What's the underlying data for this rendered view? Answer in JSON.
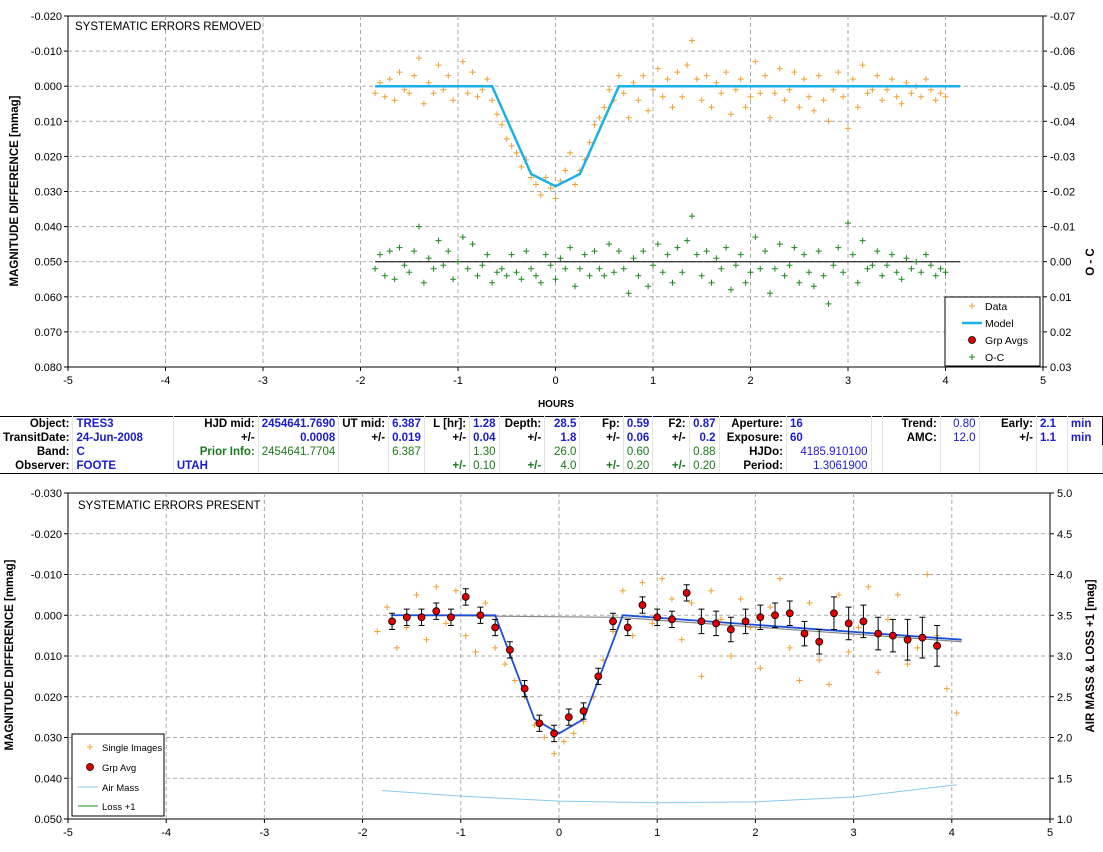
{
  "chart_data": [
    {
      "type": "scatter",
      "title": "SYSTEMATIC ERRORS REMOVED",
      "xlabel": "HOURS",
      "ylabel": "MAGNITUDE DIFFERENCE [mmag]",
      "y2label": "O - C",
      "xlim": [
        -5,
        5
      ],
      "ylim": [
        -0.02,
        0.08
      ],
      "y_inverted": true,
      "y2lim": [
        -0.07,
        0.03
      ],
      "xticks": [
        "-5",
        "-4",
        "-3",
        "-2",
        "-1",
        "0",
        "1",
        "2",
        "3",
        "4",
        "5"
      ],
      "yticks": [
        "-0.020",
        "-0.010",
        "0.000",
        "0.010",
        "0.020",
        "0.030",
        "0.040",
        "0.050",
        "0.060",
        "0.070",
        "0.080"
      ],
      "y2ticks": [
        "-0.07",
        "-0.06",
        "-0.05",
        "-0.04",
        "-0.03",
        "-0.02",
        "-0.01",
        "0.00",
        "0.01",
        "0.02",
        "0.03"
      ],
      "grid": true,
      "legend_position": "bottom-right",
      "legend": [
        "Data",
        "Model",
        "Grp Avgs",
        "O-C"
      ],
      "colors": {
        "data": "#f0a030",
        "model": "#1ab0e8",
        "oc": "#1a8a1a",
        "oc_line": "#000000",
        "grp": "#e00000"
      },
      "series": [
        {
          "name": "Model",
          "x": [
            -1.85,
            -0.65,
            -0.25,
            0.0,
            0.25,
            0.65,
            4.15
          ],
          "y": [
            0.0,
            0.0,
            0.025,
            0.0285,
            0.025,
            0.0,
            0.0
          ]
        },
        {
          "name": "Data",
          "x": [
            -1.85,
            -1.8,
            -1.75,
            -1.7,
            -1.65,
            -1.6,
            -1.55,
            -1.5,
            -1.45,
            -1.4,
            -1.35,
            -1.3,
            -1.25,
            -1.2,
            -1.15,
            -1.1,
            -1.05,
            -1.0,
            -0.95,
            -0.9,
            -0.85,
            -0.8,
            -0.75,
            -0.7,
            -0.65,
            -0.6,
            -0.55,
            -0.5,
            -0.45,
            -0.4,
            -0.35,
            -0.3,
            -0.25,
            -0.2,
            -0.15,
            -0.1,
            -0.05,
            0.0,
            0.05,
            0.1,
            0.15,
            0.2,
            0.25,
            0.3,
            0.35,
            0.4,
            0.45,
            0.5,
            0.55,
            0.6,
            0.65,
            0.7,
            0.75,
            0.8,
            0.85,
            0.9,
            0.95,
            1.0,
            1.05,
            1.1,
            1.15,
            1.2,
            1.25,
            1.3,
            1.35,
            1.4,
            1.45,
            1.5,
            1.55,
            1.6,
            1.65,
            1.7,
            1.75,
            1.8,
            1.85,
            1.9,
            1.95,
            2.0,
            2.05,
            2.1,
            2.15,
            2.2,
            2.25,
            2.3,
            2.35,
            2.4,
            2.45,
            2.5,
            2.55,
            2.6,
            2.65,
            2.7,
            2.75,
            2.8,
            2.85,
            2.9,
            2.95,
            3.0,
            3.05,
            3.1,
            3.15,
            3.2,
            3.25,
            3.3,
            3.35,
            3.4,
            3.45,
            3.5,
            3.55,
            3.6,
            3.65,
            3.7,
            3.75,
            3.8,
            3.85,
            3.9,
            3.95,
            4.0
          ],
          "y": [
            0.002,
            -0.001,
            0.003,
            -0.002,
            0.004,
            -0.004,
            0.001,
            0.002,
            -0.003,
            -0.008,
            0.005,
            -0.001,
            0.002,
            -0.006,
            0.001,
            -0.003,
            0.004,
            0.0,
            -0.007,
            0.002,
            -0.004,
            0.003,
            0.001,
            -0.002,
            0.004,
            0.008,
            0.011,
            0.015,
            0.017,
            0.019,
            0.023,
            0.021,
            0.026,
            0.028,
            0.031,
            0.026,
            0.029,
            0.032,
            0.027,
            0.024,
            0.019,
            0.028,
            0.024,
            0.021,
            0.016,
            0.011,
            0.009,
            0.006,
            0.001,
            0.004,
            -0.003,
            0.002,
            0.009,
            -0.001,
            0.004,
            -0.003,
            0.007,
            0.001,
            -0.005,
            0.003,
            -0.002,
            0.006,
            -0.004,
            0.003,
            -0.006,
            -0.013,
            -0.002,
            0.004,
            -0.003,
            0.006,
            -0.001,
            0.002,
            -0.004,
            0.008,
            0.001,
            -0.002,
            0.006,
            0.003,
            -0.007,
            0.002,
            -0.003,
            0.009,
            0.002,
            -0.005,
            0.004,
            0.001,
            -0.004,
            0.006,
            -0.002,
            0.003,
            0.007,
            -0.003,
            0.004,
            0.01,
            0.001,
            -0.004,
            0.003,
            0.012,
            -0.002,
            0.006,
            -0.006,
            0.002,
            0.001,
            -0.003,
            0.004,
            0.001,
            -0.002,
            0.003,
            0.005,
            -0.001,
            0.002,
            0.0,
            0.003,
            -0.002,
            0.001,
            0.004,
            0.002,
            0.003
          ]
        },
        {
          "name": "O-C",
          "x": [
            -1.85,
            -1.8,
            -1.75,
            -1.7,
            -1.65,
            -1.6,
            -1.55,
            -1.5,
            -1.45,
            -1.4,
            -1.35,
            -1.3,
            -1.25,
            -1.2,
            -1.15,
            -1.1,
            -1.05,
            -1.0,
            -0.95,
            -0.9,
            -0.85,
            -0.8,
            -0.75,
            -0.7,
            -0.65,
            -0.6,
            -0.55,
            -0.5,
            -0.45,
            -0.4,
            -0.35,
            -0.3,
            -0.25,
            -0.2,
            -0.15,
            -0.1,
            -0.05,
            0.0,
            0.05,
            0.1,
            0.15,
            0.2,
            0.25,
            0.3,
            0.35,
            0.4,
            0.45,
            0.5,
            0.55,
            0.6,
            0.65,
            0.7,
            0.75,
            0.8,
            0.85,
            0.9,
            0.95,
            1.0,
            1.05,
            1.1,
            1.15,
            1.2,
            1.25,
            1.3,
            1.35,
            1.4,
            1.45,
            1.5,
            1.55,
            1.6,
            1.65,
            1.7,
            1.75,
            1.8,
            1.85,
            1.9,
            1.95,
            2.0,
            2.05,
            2.1,
            2.15,
            2.2,
            2.25,
            2.3,
            2.35,
            2.4,
            2.45,
            2.5,
            2.55,
            2.6,
            2.65,
            2.7,
            2.75,
            2.8,
            2.85,
            2.9,
            2.95,
            3.0,
            3.05,
            3.1,
            3.15,
            3.2,
            3.25,
            3.3,
            3.35,
            3.4,
            3.45,
            3.5,
            3.55,
            3.6,
            3.65,
            3.7,
            3.75,
            3.8,
            3.85,
            3.9,
            3.95,
            4.0
          ],
          "y": [
            0.002,
            -0.002,
            0.004,
            -0.003,
            0.005,
            -0.004,
            0.001,
            0.003,
            -0.003,
            -0.01,
            0.006,
            -0.001,
            0.002,
            -0.006,
            0.001,
            -0.003,
            0.005,
            0.0,
            -0.007,
            0.002,
            -0.005,
            0.004,
            0.001,
            -0.002,
            0.006,
            0.003,
            0.002,
            0.004,
            -0.002,
            0.003,
            0.005,
            -0.003,
            0.002,
            0.004,
            0.006,
            -0.002,
            0.001,
            0.005,
            -0.001,
            0.002,
            -0.004,
            0.007,
            0.002,
            -0.002,
            0.004,
            -0.003,
            0.002,
            0.004,
            -0.005,
            0.003,
            -0.003,
            0.002,
            0.009,
            -0.001,
            0.004,
            -0.003,
            0.007,
            0.001,
            -0.005,
            0.003,
            -0.002,
            0.006,
            -0.004,
            0.003,
            -0.006,
            -0.013,
            -0.002,
            0.004,
            -0.003,
            0.006,
            -0.001,
            0.002,
            -0.004,
            0.008,
            0.001,
            -0.002,
            0.006,
            0.003,
            -0.007,
            0.002,
            -0.003,
            0.009,
            0.002,
            -0.005,
            0.004,
            0.001,
            -0.004,
            0.006,
            -0.002,
            0.003,
            0.007,
            -0.003,
            0.004,
            0.012,
            0.001,
            -0.004,
            0.003,
            -0.011,
            -0.002,
            0.006,
            -0.006,
            0.002,
            0.001,
            -0.003,
            0.004,
            0.001,
            -0.002,
            0.003,
            0.005,
            -0.001,
            0.002,
            0.0,
            0.003,
            -0.002,
            0.001,
            0.004,
            0.002,
            0.003
          ]
        }
      ]
    },
    {
      "type": "scatter",
      "title": "SYSTEMATIC ERRORS PRESENT",
      "xlabel": "",
      "ylabel": "MAGNITUDE DIFFERENCE [mmag]",
      "y2label": "AIR MASS & LOSS +1 [mag]",
      "xlim": [
        -5,
        5
      ],
      "ylim": [
        -0.03,
        0.05
      ],
      "y_inverted": true,
      "y2lim": [
        1.0,
        5.0
      ],
      "xticks": [
        "-5",
        "-4",
        "-3",
        "-2",
        "-1",
        "0",
        "1",
        "2",
        "3",
        "4",
        "5"
      ],
      "yticks": [
        "-0.030",
        "-0.020",
        "-0.010",
        "0.000",
        "0.010",
        "0.020",
        "0.030",
        "0.040",
        "0.050"
      ],
      "y2ticks": [
        "5.0",
        "4.5",
        "4.0",
        "3.5",
        "3.0",
        "2.5",
        "2.0",
        "1.5",
        "1.0"
      ],
      "grid": true,
      "legend_position": "bottom-left",
      "legend": [
        "Single Images",
        "Grp Avg",
        "Air Mass",
        "Loss +1"
      ],
      "colors": {
        "data": "#f0a030",
        "model": "#1a50d8",
        "trend": "#888888",
        "airmass": "#88c8ee",
        "loss": "#1a8a1a",
        "grp": "#e00000"
      },
      "series": [
        {
          "name": "Grp Avg",
          "x": [
            -1.7,
            -1.55,
            -1.4,
            -1.25,
            -1.1,
            -0.95,
            -0.8,
            -0.65,
            -0.5,
            -0.35,
            -0.2,
            -0.05,
            0.1,
            0.25,
            0.4,
            0.55,
            0.7,
            0.85,
            1.0,
            1.15,
            1.3,
            1.45,
            1.6,
            1.75,
            1.9,
            2.05,
            2.2,
            2.35,
            2.5,
            2.65,
            2.8,
            2.95,
            3.1,
            3.25,
            3.4,
            3.55,
            3.7,
            3.85
          ],
          "y": [
            0.0015,
            0.0005,
            0.0005,
            -0.001,
            0.0005,
            -0.0045,
            0.0,
            0.003,
            0.0085,
            0.018,
            0.0265,
            0.029,
            0.025,
            0.0235,
            0.015,
            0.0015,
            0.003,
            -0.0025,
            0.0005,
            0.001,
            -0.0055,
            0.0015,
            0.002,
            0.0035,
            0.0015,
            0.0005,
            0.0,
            -0.0005,
            0.0045,
            0.0065,
            -0.0005,
            0.002,
            0.0015,
            0.0045,
            0.005,
            0.006,
            0.0055,
            0.0075
          ],
          "err": [
            0.002,
            0.002,
            0.002,
            0.002,
            0.002,
            0.002,
            0.002,
            0.002,
            0.002,
            0.002,
            0.002,
            0.002,
            0.002,
            0.002,
            0.002,
            0.002,
            0.002,
            0.002,
            0.002,
            0.002,
            0.002,
            0.003,
            0.003,
            0.003,
            0.003,
            0.003,
            0.003,
            0.003,
            0.003,
            0.003,
            0.004,
            0.004,
            0.004,
            0.004,
            0.004,
            0.005,
            0.005,
            0.005
          ]
        },
        {
          "name": "Single Images",
          "x": [
            -1.85,
            -1.75,
            -1.65,
            -1.55,
            -1.45,
            -1.35,
            -1.25,
            -1.15,
            -1.05,
            -0.95,
            -0.85,
            -0.75,
            -0.65,
            -0.55,
            -0.45,
            -0.35,
            -0.25,
            -0.15,
            -0.05,
            0.05,
            0.15,
            0.25,
            0.35,
            0.45,
            0.55,
            0.65,
            0.75,
            0.85,
            0.95,
            1.05,
            1.15,
            1.25,
            1.35,
            1.45,
            1.55,
            1.65,
            1.75,
            1.85,
            1.95,
            2.05,
            2.15,
            2.25,
            2.35,
            2.45,
            2.55,
            2.65,
            2.75,
            2.85,
            2.95,
            3.05,
            3.15,
            3.25,
            3.35,
            3.45,
            3.55,
            3.65,
            3.75,
            3.85,
            3.95,
            4.05
          ],
          "y": [
            0.004,
            -0.002,
            0.008,
            0.003,
            -0.005,
            0.006,
            -0.007,
            0.002,
            -0.006,
            0.005,
            0.009,
            -0.003,
            0.008,
            0.012,
            0.016,
            0.02,
            0.027,
            0.03,
            0.034,
            0.031,
            0.029,
            0.026,
            0.02,
            0.011,
            0.004,
            -0.006,
            0.005,
            -0.008,
            0.002,
            -0.009,
            -0.004,
            0.006,
            -0.003,
            0.015,
            -0.006,
            0.001,
            0.01,
            -0.004,
            0.003,
            0.013,
            -0.002,
            -0.009,
            0.008,
            0.016,
            -0.003,
            0.011,
            0.017,
            -0.005,
            0.009,
            0.003,
            -0.007,
            0.014,
            0.001,
            -0.005,
            0.012,
            0.008,
            -0.01,
            0.005,
            0.018,
            0.024
          ]
        },
        {
          "name": "Model",
          "x": [
            -1.7,
            -0.65,
            -0.25,
            0.0,
            0.25,
            0.65,
            4.1
          ],
          "y": [
            0.0,
            0.0,
            0.0255,
            0.029,
            0.0255,
            0.0,
            0.006
          ]
        },
        {
          "name": "Trend",
          "x": [
            -1.7,
            0.6,
            4.1
          ],
          "y": [
            0.0,
            0.0005,
            0.0065
          ]
        },
        {
          "name": "Air Mass",
          "x": [
            -1.8,
            -1.0,
            0.0,
            1.0,
            2.0,
            3.0,
            4.05
          ],
          "y": [
            1.35,
            1.28,
            1.22,
            1.2,
            1.21,
            1.27,
            1.42
          ]
        },
        {
          "name": "Loss +1",
          "x": [],
          "y": []
        }
      ]
    }
  ],
  "info_table": {
    "rows": [
      [
        "Object:",
        "TRES3",
        "HJD mid:",
        "2454641.7690",
        "UT mid:",
        "6.387",
        "L [hr]:",
        "1.28",
        "Depth:",
        "28.5",
        "Fp:",
        "0.59",
        "F2:",
        "0.87",
        "Aperture:",
        "16",
        "",
        "Trend:",
        "0.80",
        "Early:",
        "2.1",
        "min"
      ],
      [
        "TransitDate:",
        "24-Jun-2008",
        "+/-",
        "0.0008",
        "+/-",
        "0.019",
        "+/-",
        "0.04",
        "+/-",
        "1.8",
        "+/-",
        "0.06",
        "+/-",
        "0.2",
        "Exposure:",
        "60",
        "",
        "AMC:",
        "12.0",
        "+/-",
        "1.1",
        "min"
      ],
      [
        "Band:",
        "C",
        "Prior Info:",
        "2454641.7704",
        "",
        "6.387",
        "",
        "1.30",
        "",
        "26.0",
        "",
        "0.60",
        "",
        "0.88",
        "HJDo:",
        "4185.910100",
        "",
        "",
        "",
        "",
        "",
        ""
      ],
      [
        "Observer:",
        "FOOTE",
        "UTAH",
        "",
        "",
        "",
        "+/-",
        "0.10",
        "+/-",
        "4.0",
        "+/-",
        "0.20",
        "+/-",
        "0.20",
        "Period:",
        "1.3061900",
        "",
        "",
        "",
        "",
        "",
        ""
      ]
    ]
  }
}
